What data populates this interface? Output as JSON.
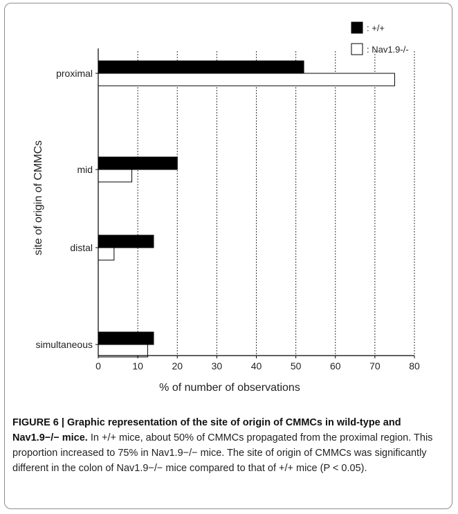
{
  "chart_data": {
    "type": "bar",
    "orientation": "horizontal",
    "categories": [
      "proximal",
      "mid",
      "distal",
      "simultaneous"
    ],
    "series": [
      {
        "name": ": +/+",
        "color": "#000000",
        "values": [
          52,
          20,
          14,
          14
        ]
      },
      {
        "name": ": Nav1.9-/-",
        "color": "#ffffff",
        "values": [
          75,
          8.5,
          4,
          12.5
        ]
      }
    ],
    "xlabel": "% of number of observations",
    "ylabel": "site of origin of CMMCs",
    "xlim": [
      0,
      80
    ],
    "xticks": [
      0,
      10,
      20,
      30,
      40,
      50,
      60,
      70,
      80
    ],
    "grid": "vertical-dotted",
    "legend": "top-right"
  },
  "caption": {
    "figure_label": "FIGURE 6 |",
    "title": " Graphic representation of the site of origin of CMMCs in wild-type and Nav1.9−/− mice.",
    "body": " In +/+ mice, about 50% of CMMCs propagated from the proximal region. This proportion increased to 75% in Nav1.9−/− mice. The site of origin of CMMCs was significantly different in the colon of Nav1.9−/− mice compared to that of +/+ mice (P < 0.05)."
  }
}
